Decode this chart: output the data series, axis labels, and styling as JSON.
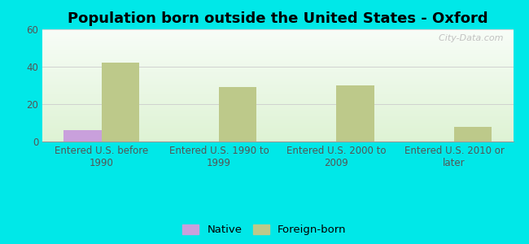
{
  "title": "Population born outside the United States - Oxford",
  "categories": [
    "Entered U.S. before\n1990",
    "Entered U.S. 1990 to\n1999",
    "Entered U.S. 2000 to\n2009",
    "Entered U.S. 2010 or\nlater"
  ],
  "native_values": [
    6,
    0,
    0,
    0
  ],
  "foreign_values": [
    42,
    29,
    30,
    8
  ],
  "native_color": "#c9a0dc",
  "foreign_color": "#bdc98a",
  "background_color": "#00e8e8",
  "ylim": [
    0,
    60
  ],
  "yticks": [
    0,
    20,
    40,
    60
  ],
  "bar_width": 0.32,
  "title_fontsize": 13,
  "tick_fontsize": 8.5,
  "legend_fontsize": 9.5,
  "watermark": "  City-Data.com"
}
